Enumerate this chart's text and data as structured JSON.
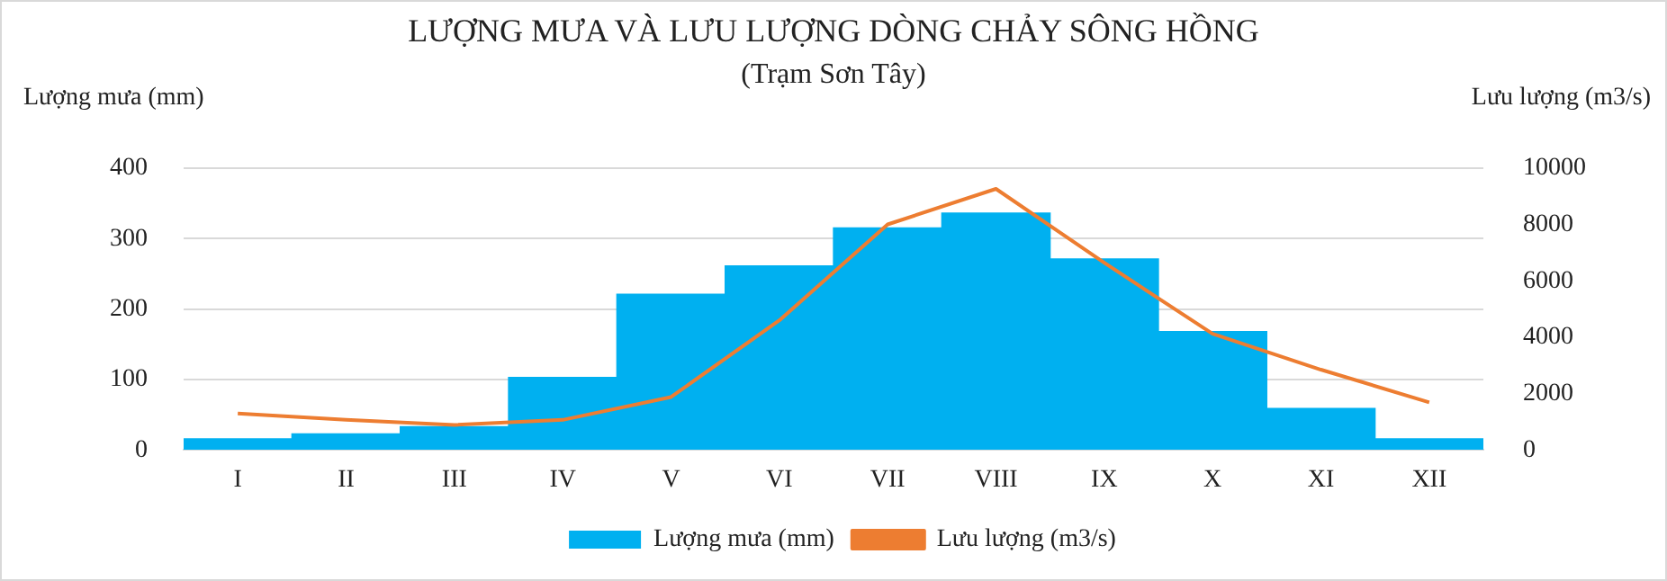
{
  "chart_data": {
    "type": "bar",
    "title": "LƯỢNG MƯA VÀ LƯU LƯỢNG DÒNG CHẢY SÔNG HỒNG",
    "subtitle": "(Trạm Sơn Tây)",
    "ylabel": "Lượng mưa (mm)",
    "y2label": "Lưu lượng (m3/s)",
    "categories": [
      "I",
      "II",
      "III",
      "IV",
      "V",
      "VI",
      "VII",
      "VIII",
      "IX",
      "X",
      "XI",
      "XII"
    ],
    "series": [
      {
        "name": "Lượng mưa (mm)",
        "color": "#00b0f0",
        "values": [
          16,
          23,
          33,
          103,
          221,
          261,
          315,
          336,
          271,
          168,
          59,
          16
        ]
      },
      {
        "name": "Lưu lượng (m3/s)",
        "type": "line",
        "axis": "y2",
        "color": "#ed7d31",
        "values": [
          1300,
          1070,
          890,
          1070,
          1880,
          4600,
          8000,
          9260,
          6640,
          4120,
          2850,
          1690
        ]
      }
    ],
    "ylim": [
      0,
      400
    ],
    "yticks": [
      0,
      100,
      200,
      300,
      400
    ],
    "y2lim": [
      0,
      10000
    ],
    "y2ticks": [
      0,
      2000,
      4000,
      6000,
      8000,
      10000
    ],
    "grid": "y",
    "legend": "bottom",
    "marker": "none"
  }
}
